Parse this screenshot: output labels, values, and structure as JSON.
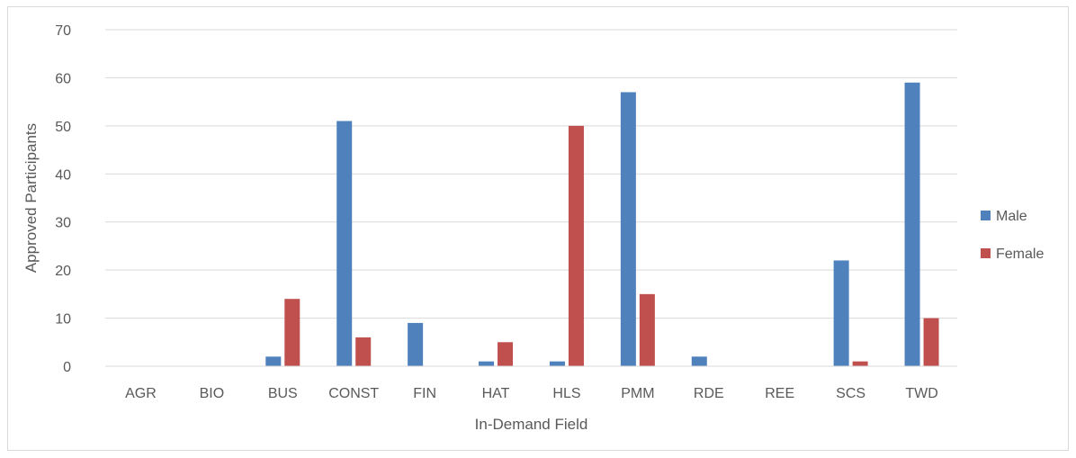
{
  "chart_data": {
    "type": "bar",
    "title": "",
    "xlabel": "In-Demand Field",
    "ylabel": "Approved Participants",
    "ylim": [
      0,
      70
    ],
    "yticks": [
      0,
      10,
      20,
      30,
      40,
      50,
      60,
      70
    ],
    "grid": true,
    "legend_position": "right",
    "categories": [
      "AGR",
      "BIO",
      "BUS",
      "CONST",
      "FIN",
      "HAT",
      "HLS",
      "PMM",
      "RDE",
      "REE",
      "SCS",
      "TWD"
    ],
    "series": [
      {
        "name": "Male",
        "color": "#4f81bd",
        "values": [
          0,
          0,
          2,
          51,
          9,
          1,
          1,
          57,
          2,
          0,
          22,
          59
        ]
      },
      {
        "name": "Female",
        "color": "#c0504d",
        "values": [
          0,
          0,
          14,
          6,
          0,
          5,
          50,
          15,
          0,
          0,
          1,
          10
        ]
      }
    ]
  }
}
